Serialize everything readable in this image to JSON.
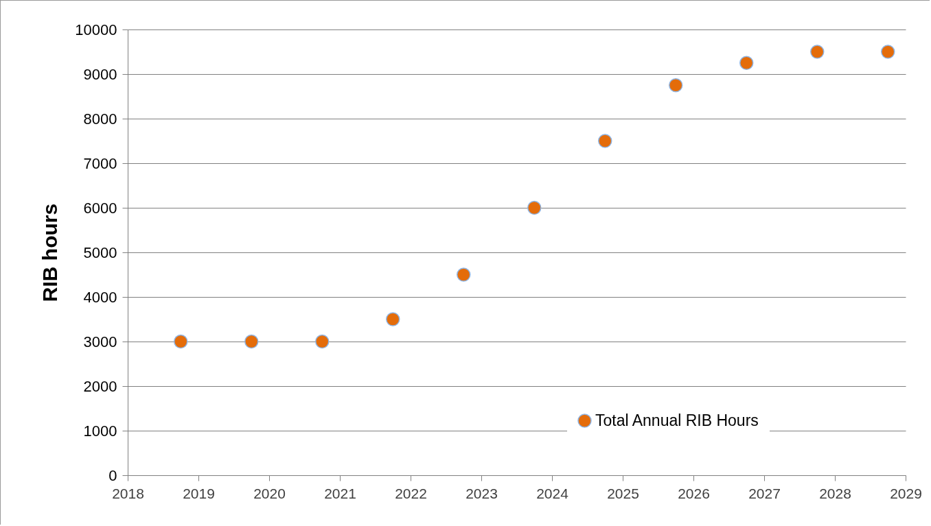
{
  "chart_data": {
    "type": "scatter",
    "ylabel": "RIB hours",
    "x": [
      2018.75,
      2019.75,
      2020.75,
      2021.75,
      2022.75,
      2023.75,
      2024.75,
      2025.75,
      2026.75,
      2027.75,
      2028.75
    ],
    "series": [
      {
        "name": "Total Annual RIB Hours",
        "color": "#e46c0a",
        "values": [
          3000,
          3000,
          3000,
          3500,
          4500,
          6000,
          7500,
          8750,
          9250,
          9500,
          9500
        ]
      }
    ],
    "xlim": [
      2018,
      2029
    ],
    "xticks": [
      2018,
      2019,
      2020,
      2021,
      2022,
      2023,
      2024,
      2025,
      2026,
      2027,
      2028,
      2029
    ],
    "ylim": [
      0,
      10000
    ],
    "yticks": [
      0,
      1000,
      2000,
      3000,
      4000,
      5000,
      6000,
      7000,
      8000,
      9000,
      10000
    ],
    "grid": "y",
    "legend": "bottom right",
    "marker": "circle"
  }
}
